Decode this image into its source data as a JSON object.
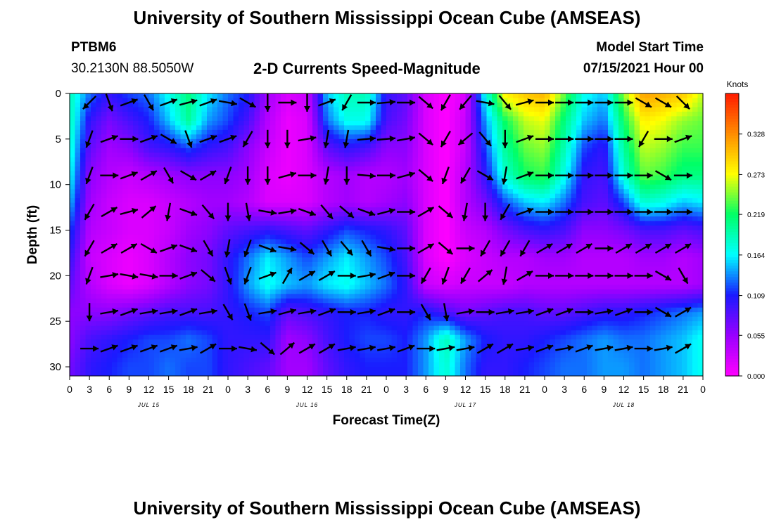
{
  "header": {
    "main_title": "University of Southern Mississippi Ocean Cube (AMSEAS)",
    "station_id": "PTBM6",
    "station_coords": "30.2130N  88.5050W",
    "chart_title": "2-D Currents Speed-Magnitude",
    "model_start_label": "Model Start Time",
    "model_start_value": "07/15/2021 Hour 00"
  },
  "footer": {
    "title": "University of Southern Mississippi Ocean Cube (AMSEAS)"
  },
  "colors": {
    "scale": [
      "#ff00ff",
      "#9900ff",
      "#1a1aff",
      "#00ffff",
      "#00ff66",
      "#ffff00",
      "#ff8c00",
      "#ff1a00"
    ],
    "arrow": "#000000"
  },
  "chart_data": {
    "type": "heatmap",
    "xlabel": "Forecast Time(Z)",
    "ylabel": "Depth (ft)",
    "x_ticks": [
      "0",
      "3",
      "6",
      "9",
      "12",
      "15",
      "18",
      "21",
      "0",
      "3",
      "6",
      "9",
      "12",
      "15",
      "18",
      "21",
      "0",
      "3",
      "6",
      "9",
      "12",
      "15",
      "18",
      "21",
      "0",
      "3",
      "6",
      "9",
      "12",
      "15",
      "18",
      "21",
      "0"
    ],
    "date_labels": [
      {
        "label": "JUL 15",
        "hour": 12
      },
      {
        "label": "JUL 16",
        "hour": 36
      },
      {
        "label": "JUL 17",
        "hour": 60
      },
      {
        "label": "JUL 18",
        "hour": 84
      }
    ],
    "xlim": [
      0,
      96
    ],
    "ylim": [
      0,
      31
    ],
    "y_ticks": [
      0,
      5,
      10,
      15,
      20,
      25,
      30
    ],
    "colorbar": {
      "label": "Knots",
      "ticks": [
        "0.000",
        "0.055",
        "0.109",
        "0.164",
        "0.219",
        "0.273",
        "0.328"
      ],
      "range": [
        0,
        0.383
      ]
    },
    "speed_knots": {
      "depths_ft": [
        0,
        3,
        6,
        9,
        12,
        15,
        18,
        21,
        24,
        27,
        30
      ],
      "hours": [
        0,
        3,
        6,
        9,
        12,
        15,
        18,
        21,
        24,
        27,
        30,
        33,
        36,
        39,
        42,
        45,
        48,
        51,
        54,
        57,
        60,
        63,
        66,
        69,
        72,
        75,
        78,
        81,
        84,
        87,
        90,
        93,
        96
      ],
      "rows": [
        [
          0.19,
          0.13,
          0.1,
          0.12,
          0.13,
          0.17,
          0.21,
          0.16,
          0.13,
          0.11,
          0.05,
          0.02,
          0.03,
          0.15,
          0.19,
          0.19,
          0.1,
          0.08,
          0.02,
          0.0,
          0.02,
          0.17,
          0.28,
          0.3,
          0.31,
          0.24,
          0.17,
          0.15,
          0.25,
          0.32,
          0.31,
          0.3,
          0.26
        ],
        [
          0.19,
          0.1,
          0.07,
          0.09,
          0.11,
          0.15,
          0.2,
          0.14,
          0.12,
          0.09,
          0.04,
          0.01,
          0.02,
          0.13,
          0.17,
          0.17,
          0.09,
          0.07,
          0.02,
          0.0,
          0.03,
          0.14,
          0.22,
          0.26,
          0.27,
          0.21,
          0.15,
          0.13,
          0.22,
          0.28,
          0.27,
          0.25,
          0.24
        ],
        [
          0.18,
          0.08,
          0.05,
          0.06,
          0.09,
          0.1,
          0.12,
          0.1,
          0.09,
          0.06,
          0.03,
          0.01,
          0.02,
          0.08,
          0.1,
          0.09,
          0.06,
          0.06,
          0.02,
          0.0,
          0.03,
          0.12,
          0.2,
          0.24,
          0.25,
          0.19,
          0.12,
          0.1,
          0.2,
          0.26,
          0.25,
          0.23,
          0.23
        ],
        [
          0.17,
          0.06,
          0.04,
          0.03,
          0.04,
          0.05,
          0.06,
          0.06,
          0.06,
          0.05,
          0.02,
          0.01,
          0.02,
          0.04,
          0.05,
          0.04,
          0.04,
          0.05,
          0.02,
          0.0,
          0.04,
          0.1,
          0.18,
          0.22,
          0.23,
          0.17,
          0.1,
          0.09,
          0.18,
          0.24,
          0.23,
          0.21,
          0.21
        ],
        [
          0.15,
          0.05,
          0.03,
          0.02,
          0.02,
          0.03,
          0.04,
          0.05,
          0.05,
          0.04,
          0.02,
          0.02,
          0.02,
          0.04,
          0.05,
          0.04,
          0.05,
          0.06,
          0.02,
          0.0,
          0.04,
          0.07,
          0.12,
          0.15,
          0.16,
          0.13,
          0.09,
          0.08,
          0.12,
          0.18,
          0.17,
          0.15,
          0.16
        ],
        [
          0.12,
          0.04,
          0.03,
          0.02,
          0.02,
          0.03,
          0.05,
          0.06,
          0.08,
          0.09,
          0.1,
          0.09,
          0.08,
          0.1,
          0.12,
          0.11,
          0.1,
          0.08,
          0.02,
          0.0,
          0.03,
          0.04,
          0.07,
          0.09,
          0.1,
          0.09,
          0.06,
          0.06,
          0.07,
          0.09,
          0.09,
          0.08,
          0.09
        ],
        [
          0.1,
          0.03,
          0.02,
          0.01,
          0.02,
          0.04,
          0.06,
          0.07,
          0.1,
          0.13,
          0.16,
          0.14,
          0.12,
          0.14,
          0.16,
          0.14,
          0.12,
          0.09,
          0.02,
          0.0,
          0.02,
          0.03,
          0.04,
          0.04,
          0.05,
          0.05,
          0.04,
          0.04,
          0.04,
          0.05,
          0.05,
          0.04,
          0.05
        ],
        [
          0.08,
          0.04,
          0.02,
          0.01,
          0.02,
          0.04,
          0.06,
          0.07,
          0.1,
          0.14,
          0.17,
          0.15,
          0.14,
          0.16,
          0.17,
          0.15,
          0.13,
          0.1,
          0.03,
          0.02,
          0.03,
          0.03,
          0.03,
          0.04,
          0.04,
          0.04,
          0.04,
          0.04,
          0.04,
          0.04,
          0.04,
          0.04,
          0.05
        ],
        [
          0.06,
          0.06,
          0.06,
          0.07,
          0.08,
          0.09,
          0.09,
          0.09,
          0.1,
          0.11,
          0.12,
          0.08,
          0.09,
          0.1,
          0.11,
          0.11,
          0.1,
          0.1,
          0.11,
          0.09,
          0.07,
          0.08,
          0.09,
          0.09,
          0.08,
          0.08,
          0.09,
          0.1,
          0.1,
          0.11,
          0.12,
          0.13,
          0.14
        ],
        [
          0.06,
          0.09,
          0.1,
          0.11,
          0.12,
          0.12,
          0.13,
          0.12,
          0.1,
          0.1,
          0.1,
          0.05,
          0.06,
          0.09,
          0.11,
          0.12,
          0.12,
          0.11,
          0.14,
          0.19,
          0.14,
          0.11,
          0.1,
          0.1,
          0.11,
          0.12,
          0.13,
          0.14,
          0.13,
          0.13,
          0.14,
          0.15,
          0.17
        ],
        [
          0.07,
          0.1,
          0.11,
          0.12,
          0.12,
          0.13,
          0.12,
          0.12,
          0.1,
          0.09,
          0.08,
          0.05,
          0.05,
          0.08,
          0.1,
          0.11,
          0.11,
          0.11,
          0.14,
          0.18,
          0.13,
          0.1,
          0.1,
          0.11,
          0.12,
          0.13,
          0.13,
          0.14,
          0.14,
          0.13,
          0.14,
          0.15,
          0.17
        ]
      ]
    },
    "current_vectors": {
      "depths_ft": [
        1,
        5,
        9,
        13,
        17,
        20,
        24,
        28
      ],
      "hours": [
        3,
        6,
        9,
        12,
        15,
        18,
        21,
        24,
        27,
        30,
        33,
        36,
        39,
        42,
        45,
        48,
        51,
        54,
        57,
        60,
        63,
        66,
        69,
        72,
        75,
        78,
        81,
        84,
        87,
        90,
        93
      ],
      "directions_deg": [
        [
          225,
          160,
          70,
          150,
          70,
          75,
          70,
          100,
          120,
          180,
          90,
          180,
          70,
          210,
          90,
          85,
          90,
          130,
          210,
          220,
          100,
          140,
          75,
          90,
          90,
          90,
          90,
          90,
          120,
          120,
          135
        ],
        [
          200,
          70,
          90,
          70,
          120,
          160,
          70,
          70,
          210,
          180,
          180,
          80,
          190,
          190,
          85,
          85,
          80,
          130,
          210,
          230,
          140,
          180,
          70,
          90,
          90,
          90,
          90,
          90,
          210,
          90,
          70
        ],
        [
          200,
          90,
          70,
          60,
          150,
          120,
          60,
          200,
          180,
          180,
          75,
          90,
          190,
          180,
          95,
          90,
          75,
          130,
          200,
          210,
          120,
          190,
          70,
          90,
          90,
          90,
          90,
          90,
          90,
          120,
          90
        ],
        [
          210,
          60,
          75,
          50,
          190,
          110,
          140,
          180,
          170,
          100,
          80,
          110,
          140,
          130,
          110,
          75,
          90,
          60,
          130,
          190,
          180,
          210,
          70,
          90,
          90,
          90,
          90,
          90,
          90,
          90,
          90
        ],
        [
          210,
          60,
          60,
          120,
          70,
          110,
          150,
          190,
          200,
          110,
          100,
          130,
          150,
          140,
          150,
          100,
          90,
          60,
          130,
          90,
          210,
          210,
          210,
          60,
          60,
          60,
          90,
          60,
          60,
          60,
          60
        ],
        [
          200,
          80,
          100,
          100,
          90,
          70,
          130,
          160,
          200,
          70,
          30,
          60,
          60,
          90,
          80,
          70,
          90,
          210,
          200,
          210,
          50,
          190,
          60,
          90,
          90,
          90,
          90,
          90,
          90,
          120,
          150
        ],
        [
          180,
          80,
          70,
          80,
          80,
          70,
          80,
          150,
          160,
          80,
          75,
          80,
          70,
          90,
          80,
          70,
          90,
          150,
          170,
          80,
          90,
          80,
          80,
          70,
          70,
          90,
          80,
          70,
          90,
          120,
          60
        ],
        [
          90,
          70,
          70,
          70,
          70,
          80,
          60,
          90,
          100,
          130,
          50,
          60,
          60,
          80,
          80,
          80,
          70,
          90,
          80,
          80,
          60,
          60,
          80,
          70,
          80,
          70,
          80,
          80,
          90,
          80,
          60
        ]
      ]
    }
  }
}
